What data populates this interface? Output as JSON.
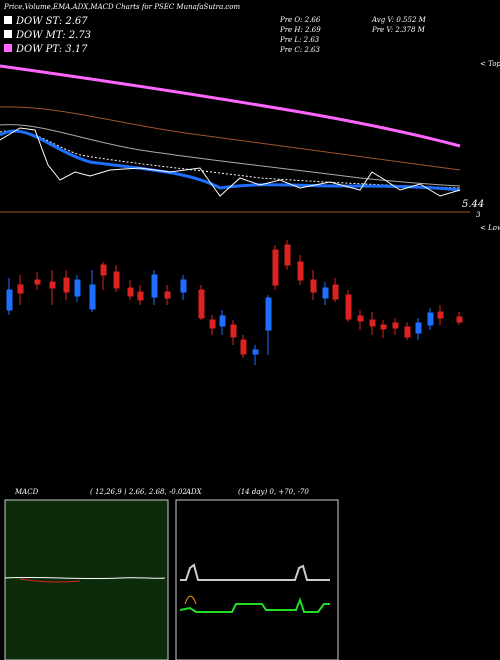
{
  "header": {
    "title": "Price,Volume,EMA,ADX,MACD Charts for PSEC MunafaSutra.com"
  },
  "legend": [
    {
      "label": "DOW ST: 2.67"
    },
    {
      "label": "DOW MT: 2.73"
    },
    {
      "label": "DOW PT: 3.17"
    }
  ],
  "info": [
    "Pre  O: 2.66",
    "Pre  H: 2.69",
    "Pre  L: 2.63",
    "Pre  C: 2.63",
    "Avg V: 0.552  M",
    "Pre  V: 2.378  M"
  ],
  "price_labels": {
    "top": "5.44",
    "bottom": "3",
    "tops": "< Tops",
    "lows": "< Lows"
  },
  "macd": {
    "title": "MACD",
    "params": "( 12,26,9 ) 2.66, 2.68, -0.02"
  },
  "adx": {
    "title": "ADX",
    "params": "(14  day) 0, +70, -70"
  }
}
